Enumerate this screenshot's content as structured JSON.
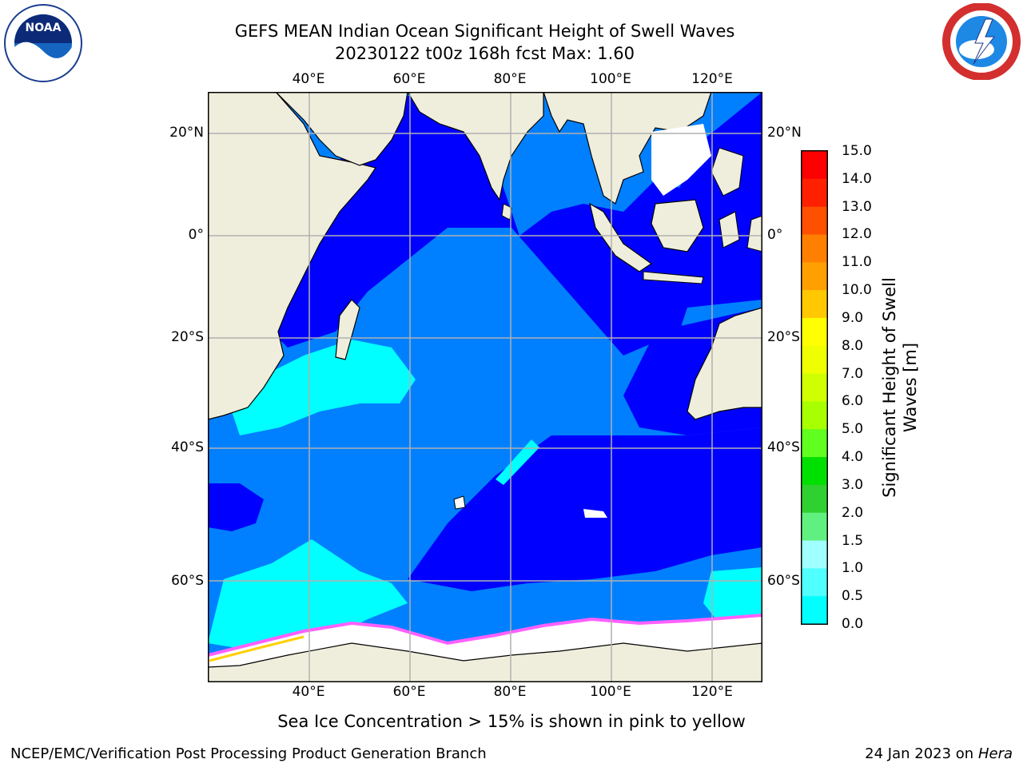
{
  "title": {
    "line1": "GEFS MEAN Indian Ocean Significant Height of Swell Waves",
    "line2": "20230122 t00z 168h fcst   Max: 1.60"
  },
  "caption": "Sea Ice Concentration > 15% is shown in pink to yellow",
  "credit_left": "NCEP/EMC/Verification Post Processing Product Generation Branch",
  "credit_right": {
    "date": "24 Jan 2023 on",
    "host": "Hera"
  },
  "logos": {
    "left": "noaa-logo",
    "right": "national-weather-service-logo"
  },
  "map": {
    "lon_labels": [
      "40°E",
      "60°E",
      "80°E",
      "100°E",
      "120°E"
    ],
    "lat_labels": [
      "20°N",
      "0°",
      "20°S",
      "40°S",
      "60°S"
    ],
    "colors": {
      "land": "#efeedc",
      "band_0_0_5": "#0000ff",
      "band_0_5_1_0": "#0080ff",
      "band_1_0_1_5": "#00ffff",
      "gridline": "#b0b0b0"
    }
  },
  "colorbar": {
    "label": "Significant Height of Swell Waves [m]",
    "ticks": [
      "15.0",
      "14.0",
      "13.0",
      "12.0",
      "11.0",
      "10.0",
      "9.0",
      "8.0",
      "7.0",
      "6.0",
      "5.0",
      "4.0",
      "3.0",
      "2.0",
      "1.5",
      "1.0",
      "0.5",
      "0.0"
    ],
    "colors": [
      "#ff0000",
      "#ff2000",
      "#ff5000",
      "#ff7f00",
      "#ffa000",
      "#ffc800",
      "#ffff00",
      "#f0ff00",
      "#d0ff00",
      "#a8ff00",
      "#60ff20",
      "#00e000",
      "#30d030",
      "#60f080",
      "#a0ffff",
      "#50ffff",
      "#00ffff",
      "#0080ff",
      "#0000ff"
    ]
  }
}
